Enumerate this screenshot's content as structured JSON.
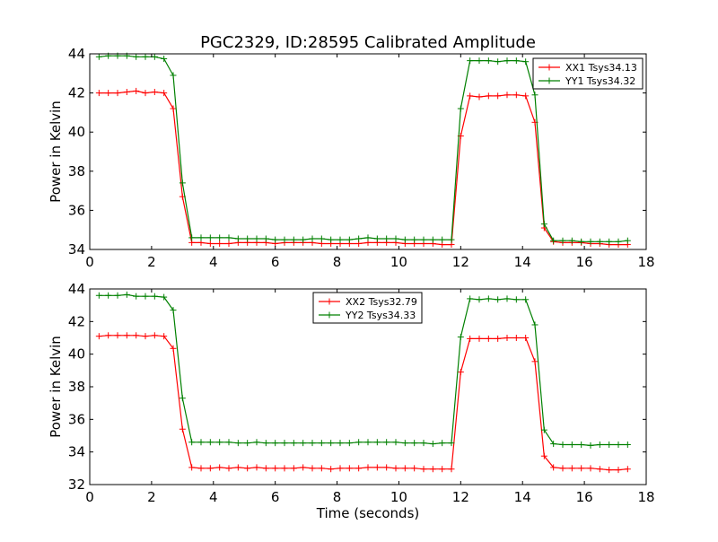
{
  "figure": {
    "title": "PGC2329, ID:28595 Calibrated Amplitude"
  },
  "chart_data": [
    {
      "type": "line",
      "title": "PGC2329, ID:28595 Calibrated Amplitude",
      "xlabel": "",
      "ylabel": "Power in Kelvin",
      "xlim": [
        0,
        18
      ],
      "ylim": [
        34,
        44
      ],
      "xticks": [
        0,
        2,
        4,
        6,
        8,
        10,
        12,
        14,
        16,
        18
      ],
      "yticks": [
        34,
        36,
        38,
        40,
        42,
        44
      ],
      "grid": false,
      "legend_position": "top-right",
      "x": [
        0.3,
        0.6,
        0.9,
        1.2,
        1.5,
        1.8,
        2.1,
        2.4,
        2.7,
        3.0,
        3.3,
        3.6,
        3.9,
        4.2,
        4.5,
        4.8,
        5.1,
        5.4,
        5.7,
        6.0,
        6.3,
        6.6,
        6.9,
        7.2,
        7.5,
        7.8,
        8.1,
        8.4,
        8.7,
        9.0,
        9.3,
        9.6,
        9.9,
        10.2,
        10.5,
        10.8,
        11.1,
        11.4,
        11.7,
        12.0,
        12.3,
        12.6,
        12.9,
        13.2,
        13.5,
        13.8,
        14.1,
        14.4,
        14.7,
        15.0,
        15.3,
        15.6,
        15.9,
        16.2,
        16.5,
        16.8,
        17.1,
        17.4
      ],
      "series": [
        {
          "name": "XX1 Tsys34.13",
          "color": "#ff0000",
          "values": [
            42.0,
            42.0,
            42.0,
            42.05,
            42.1,
            42.0,
            42.05,
            42.0,
            41.2,
            36.7,
            34.35,
            34.35,
            34.3,
            34.3,
            34.3,
            34.35,
            34.35,
            34.35,
            34.35,
            34.3,
            34.35,
            34.35,
            34.35,
            34.35,
            34.3,
            34.3,
            34.3,
            34.3,
            34.3,
            34.35,
            34.35,
            34.35,
            34.35,
            34.3,
            34.3,
            34.3,
            34.3,
            34.25,
            34.25,
            39.8,
            41.85,
            41.8,
            41.85,
            41.85,
            41.9,
            41.9,
            41.85,
            40.5,
            35.1,
            34.4,
            34.35,
            34.35,
            34.35,
            34.3,
            34.3,
            34.25,
            34.25,
            34.25
          ]
        },
        {
          "name": "YY1 Tsys34.32",
          "color": "#008000",
          "values": [
            43.85,
            43.9,
            43.9,
            43.9,
            43.85,
            43.85,
            43.85,
            43.75,
            42.9,
            37.4,
            34.6,
            34.6,
            34.6,
            34.6,
            34.6,
            34.55,
            34.55,
            34.55,
            34.55,
            34.5,
            34.5,
            34.5,
            34.5,
            34.55,
            34.55,
            34.5,
            34.5,
            34.5,
            34.55,
            34.6,
            34.55,
            34.55,
            34.55,
            34.5,
            34.5,
            34.5,
            34.5,
            34.5,
            34.5,
            41.2,
            43.65,
            43.65,
            43.65,
            43.6,
            43.65,
            43.65,
            43.6,
            41.9,
            35.3,
            34.45,
            34.45,
            34.45,
            34.4,
            34.4,
            34.4,
            34.4,
            34.4,
            34.45
          ]
        }
      ]
    },
    {
      "type": "line",
      "title": "",
      "xlabel": "Time (seconds)",
      "ylabel": "Power in Kelvin",
      "xlim": [
        0,
        18
      ],
      "ylim": [
        32,
        44
      ],
      "xticks": [
        0,
        2,
        4,
        6,
        8,
        10,
        12,
        14,
        16,
        18
      ],
      "yticks": [
        32,
        34,
        36,
        38,
        40,
        42,
        44
      ],
      "grid": false,
      "legend_position": "top-center",
      "x": [
        0.3,
        0.6,
        0.9,
        1.2,
        1.5,
        1.8,
        2.1,
        2.4,
        2.7,
        3.0,
        3.3,
        3.6,
        3.9,
        4.2,
        4.5,
        4.8,
        5.1,
        5.4,
        5.7,
        6.0,
        6.3,
        6.6,
        6.9,
        7.2,
        7.5,
        7.8,
        8.1,
        8.4,
        8.7,
        9.0,
        9.3,
        9.6,
        9.9,
        10.2,
        10.5,
        10.8,
        11.1,
        11.4,
        11.7,
        12.0,
        12.3,
        12.6,
        12.9,
        13.2,
        13.5,
        13.8,
        14.1,
        14.4,
        14.7,
        15.0,
        15.3,
        15.6,
        15.9,
        16.2,
        16.5,
        16.8,
        17.1,
        17.4
      ],
      "series": [
        {
          "name": "XX2 Tsys32.79",
          "color": "#ff0000",
          "values": [
            41.1,
            41.15,
            41.15,
            41.15,
            41.15,
            41.1,
            41.15,
            41.1,
            40.35,
            35.4,
            33.05,
            33.0,
            33.0,
            33.05,
            33.0,
            33.05,
            33.0,
            33.05,
            33.0,
            33.0,
            33.0,
            33.0,
            33.05,
            33.0,
            33.0,
            32.95,
            33.0,
            33.0,
            33.0,
            33.05,
            33.05,
            33.05,
            33.0,
            33.0,
            33.0,
            32.95,
            32.95,
            32.95,
            32.95,
            38.9,
            40.95,
            40.95,
            40.95,
            40.95,
            41.0,
            41.0,
            41.0,
            39.55,
            33.75,
            33.05,
            33.0,
            33.0,
            33.0,
            33.0,
            32.95,
            32.9,
            32.9,
            32.95
          ]
        },
        {
          "name": "YY2 Tsys34.33",
          "color": "#008000",
          "values": [
            43.6,
            43.6,
            43.6,
            43.65,
            43.55,
            43.55,
            43.55,
            43.5,
            42.7,
            37.3,
            34.6,
            34.6,
            34.6,
            34.6,
            34.6,
            34.55,
            34.55,
            34.6,
            34.55,
            34.55,
            34.55,
            34.55,
            34.55,
            34.55,
            34.55,
            34.55,
            34.55,
            34.55,
            34.6,
            34.6,
            34.6,
            34.6,
            34.6,
            34.55,
            34.55,
            34.55,
            34.5,
            34.55,
            34.55,
            41.05,
            43.4,
            43.35,
            43.4,
            43.35,
            43.4,
            43.35,
            43.35,
            41.8,
            35.35,
            34.5,
            34.45,
            34.45,
            34.45,
            34.4,
            34.45,
            34.45,
            34.45,
            34.45
          ]
        }
      ]
    }
  ]
}
